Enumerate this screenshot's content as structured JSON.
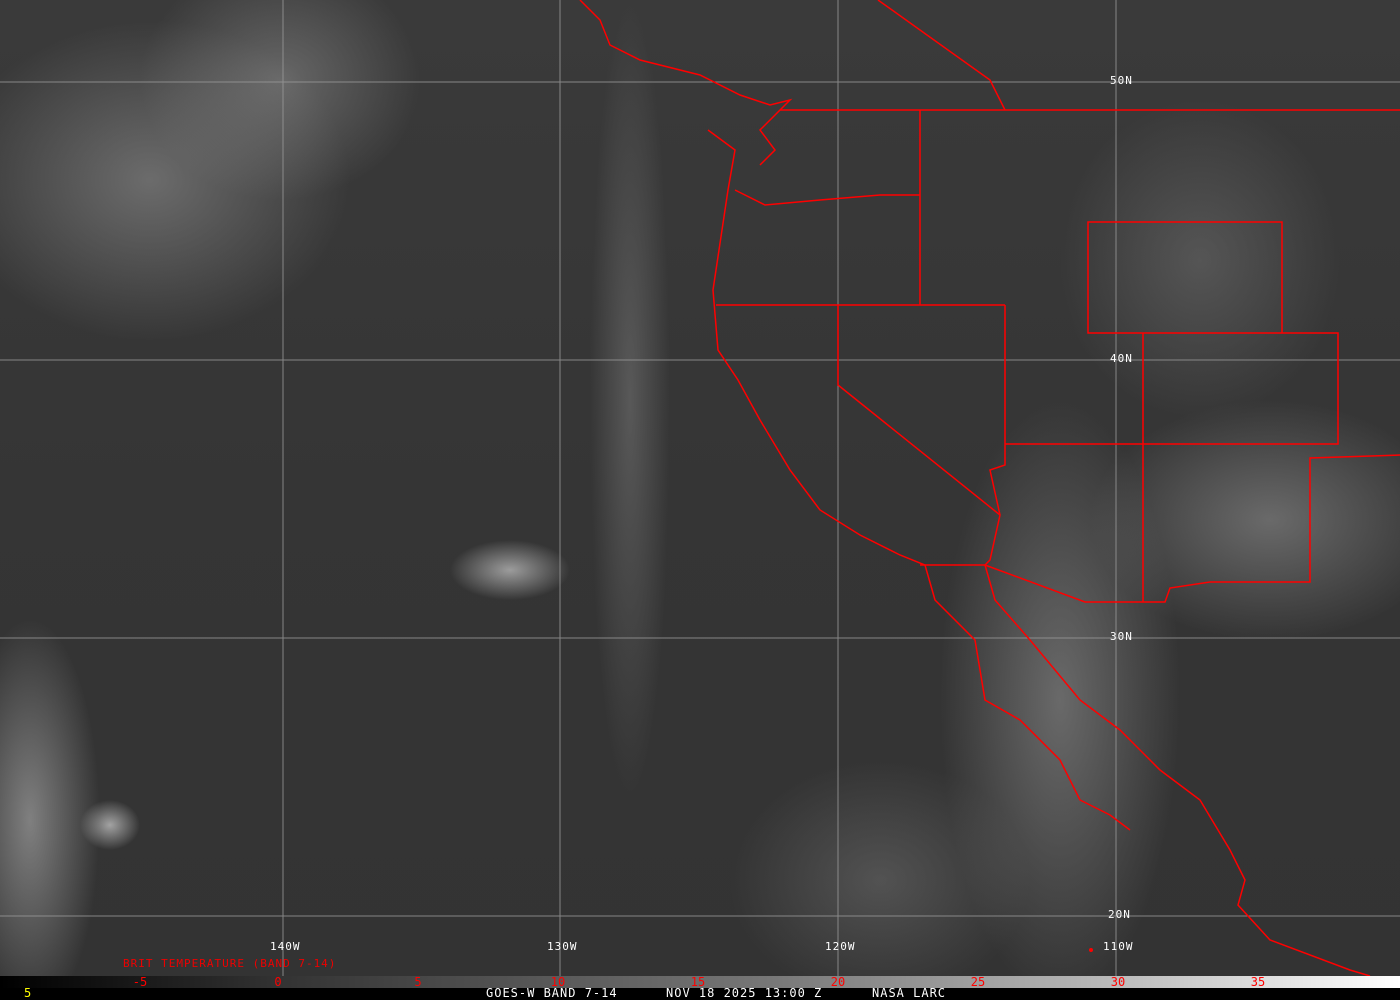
{
  "product_label": "BRIT TEMPERATURE (BAND 7-14)",
  "latitude_labels": [
    "50N",
    "40N",
    "30N",
    "20N"
  ],
  "longitude_labels": [
    "140W",
    "130W",
    "120W",
    "110W"
  ],
  "colorbar": {
    "ticks": [
      "-5",
      "0",
      "5",
      "10",
      "15",
      "20",
      "25",
      "30",
      "35"
    ],
    "tick_color": "#ff0000"
  },
  "footer": {
    "left_value": "5",
    "satellite": "GOES-W BAND 7-14",
    "datetime": "NOV 18 2025 13:00 Z",
    "source": "NASA LARC"
  },
  "colors": {
    "borders": "#ff0000",
    "grid": "#9a9a9a",
    "left_value": "#ffff00"
  }
}
